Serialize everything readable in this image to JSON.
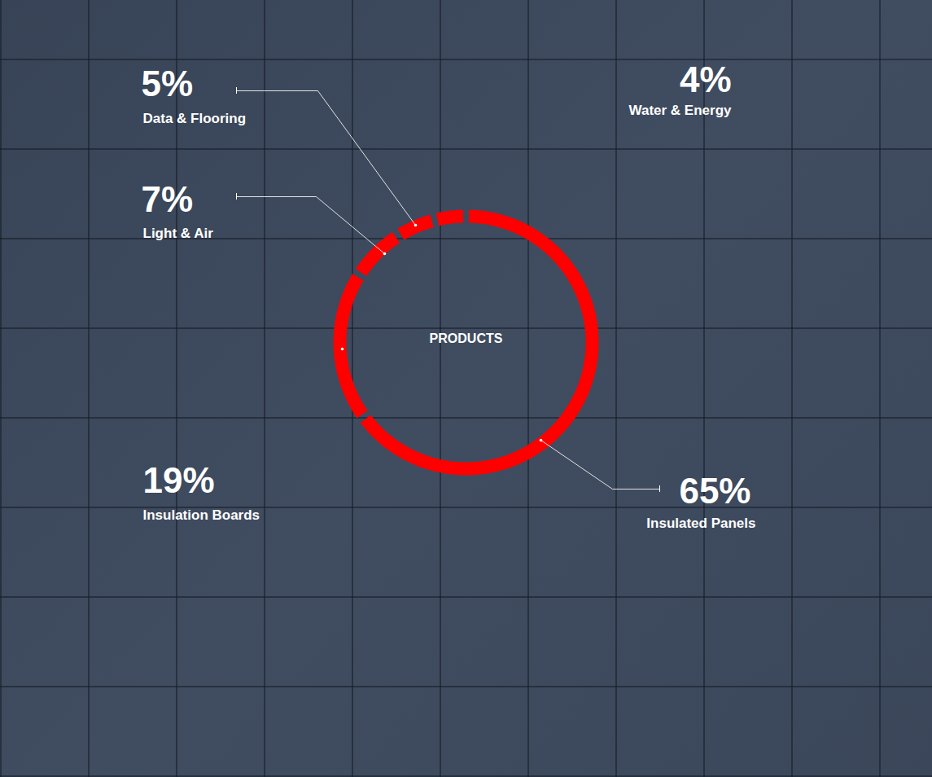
{
  "chart_data": {
    "type": "donut",
    "title": "PRODUCTS",
    "categories": [
      "Insulated Panels",
      "Insulation Boards",
      "Light & Air",
      "Data & Flooring",
      "Water & Energy"
    ],
    "values": [
      65,
      19,
      7,
      5,
      4
    ],
    "value_labels": [
      "65%",
      "19%",
      "7%",
      "5%",
      "4%"
    ],
    "color": "#ff0000",
    "data_labels": true,
    "tick_labels": false
  }
}
